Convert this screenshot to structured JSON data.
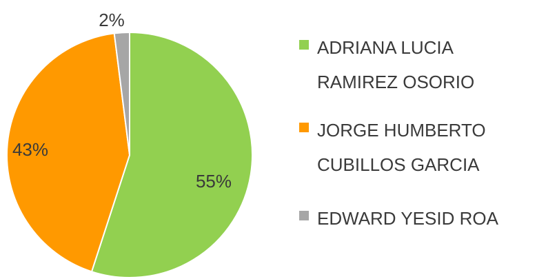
{
  "chart_data": {
    "type": "pie",
    "title": "",
    "legend_position": "right",
    "slices": [
      {
        "label": "ADRIANA LUCIA RAMIREZ OSORIO",
        "label_lines": [
          "ADRIANA LUCIA",
          "RAMIREZ OSORIO"
        ],
        "value": 55,
        "value_label": "55%",
        "color": "#92d050"
      },
      {
        "label": "JORGE HUMBERTO CUBILLOS GARCIA",
        "label_lines": [
          "JORGE HUMBERTO",
          "CUBILLOS GARCIA"
        ],
        "value": 43,
        "value_label": "43%",
        "color": "#ff9900"
      },
      {
        "label": "EDWARD YESID ROA",
        "label_lines": [
          "EDWARD YESID ROA"
        ],
        "value": 2,
        "value_label": "2%",
        "color": "#a6a6a6"
      }
    ]
  }
}
